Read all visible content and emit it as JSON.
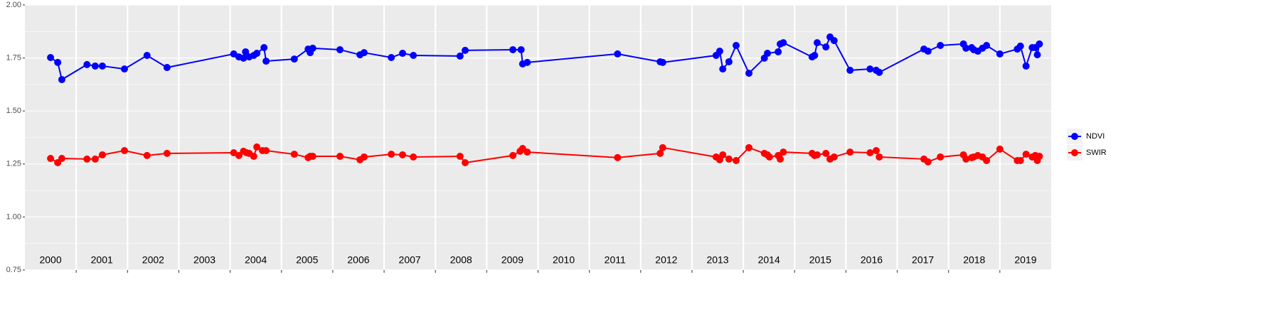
{
  "chart_data": {
    "type": "line",
    "series": [
      {
        "name": "NDVI",
        "color": "#0000ff",
        "x": [
          2000.5,
          2000.64,
          2000.72,
          2001.21,
          2001.37,
          2001.51,
          2001.94,
          2002.38,
          2002.77,
          2004.07,
          2004.17,
          2004.26,
          2004.3,
          2004.37,
          2004.46,
          2004.52,
          2004.66,
          2004.7,
          2005.25,
          2005.52,
          2005.56,
          2005.61,
          2006.14,
          2006.53,
          2006.61,
          2007.14,
          2007.36,
          2007.57,
          2008.48,
          2008.58,
          2009.51,
          2009.67,
          2009.7,
          2009.79,
          2011.55,
          2012.38,
          2012.43,
          2013.47,
          2013.54,
          2013.6,
          2013.72,
          2013.86,
          2014.11,
          2014.41,
          2014.47,
          2014.68,
          2014.72,
          2014.78,
          2015.34,
          2015.39,
          2015.44,
          2015.61,
          2015.69,
          2015.77,
          2016.08,
          2016.47,
          2016.59,
          2016.65,
          2017.52,
          2017.6,
          2017.84,
          2018.29,
          2018.34,
          2018.45,
          2018.49,
          2018.57,
          2018.66,
          2018.74,
          2019.0,
          2019.34,
          2019.4,
          2019.51,
          2019.63,
          2019.69,
          2019.73,
          2019.77
        ],
        "values": [
          1.752,
          1.729,
          1.648,
          1.719,
          1.712,
          1.712,
          1.698,
          1.762,
          1.705,
          1.769,
          1.755,
          1.749,
          1.779,
          1.755,
          1.762,
          1.772,
          1.799,
          1.735,
          1.745,
          1.792,
          1.775,
          1.796,
          1.789,
          1.765,
          1.775,
          1.752,
          1.772,
          1.762,
          1.759,
          1.786,
          1.789,
          1.789,
          1.722,
          1.729,
          1.769,
          1.732,
          1.729,
          1.762,
          1.782,
          1.698,
          1.732,
          1.809,
          1.678,
          1.749,
          1.772,
          1.779,
          1.816,
          1.822,
          1.755,
          1.762,
          1.822,
          1.802,
          1.849,
          1.832,
          1.692,
          1.698,
          1.692,
          1.682,
          1.792,
          1.782,
          1.809,
          1.816,
          1.796,
          1.799,
          1.789,
          1.782,
          1.796,
          1.809,
          1.769,
          1.792,
          1.806,
          1.712,
          1.799,
          1.799,
          1.765,
          1.816
        ]
      },
      {
        "name": "SWIR",
        "color": "#ff0000",
        "x": [
          2000.5,
          2000.64,
          2000.72,
          2001.21,
          2001.37,
          2001.51,
          2001.94,
          2002.38,
          2002.77,
          2004.07,
          2004.17,
          2004.26,
          2004.32,
          2004.37,
          2004.46,
          2004.52,
          2004.63,
          2004.7,
          2005.25,
          2005.52,
          2005.56,
          2005.61,
          2006.14,
          2006.53,
          2006.61,
          2007.14,
          2007.36,
          2007.57,
          2008.48,
          2008.58,
          2009.51,
          2009.65,
          2009.7,
          2009.79,
          2011.55,
          2012.38,
          2012.43,
          2013.47,
          2013.54,
          2013.6,
          2013.72,
          2013.86,
          2014.11,
          2014.41,
          2014.47,
          2014.51,
          2014.68,
          2014.72,
          2014.78,
          2015.34,
          2015.39,
          2015.44,
          2015.61,
          2015.69,
          2015.77,
          2016.08,
          2016.47,
          2016.59,
          2016.65,
          2017.52,
          2017.6,
          2017.84,
          2018.29,
          2018.34,
          2018.45,
          2018.49,
          2018.57,
          2018.66,
          2018.74,
          2019.0,
          2019.34,
          2019.4,
          2019.51,
          2019.63,
          2019.69,
          2019.73,
          2019.77
        ],
        "values": [
          1.276,
          1.256,
          1.276,
          1.273,
          1.273,
          1.293,
          1.313,
          1.29,
          1.3,
          1.303,
          1.29,
          1.31,
          1.303,
          1.3,
          1.286,
          1.33,
          1.313,
          1.313,
          1.296,
          1.28,
          1.286,
          1.286,
          1.286,
          1.27,
          1.283,
          1.296,
          1.293,
          1.283,
          1.286,
          1.256,
          1.29,
          1.31,
          1.323,
          1.306,
          1.28,
          1.3,
          1.327,
          1.283,
          1.27,
          1.293,
          1.273,
          1.266,
          1.327,
          1.3,
          1.293,
          1.283,
          1.29,
          1.273,
          1.306,
          1.3,
          1.29,
          1.293,
          1.3,
          1.273,
          1.283,
          1.306,
          1.303,
          1.313,
          1.283,
          1.273,
          1.26,
          1.283,
          1.293,
          1.273,
          1.28,
          1.283,
          1.29,
          1.283,
          1.266,
          1.32,
          1.266,
          1.266,
          1.296,
          1.283,
          1.29,
          1.266,
          1.286
        ]
      }
    ],
    "xlim": [
      2000,
      2020
    ],
    "xticks": [
      2001,
      2002,
      2003,
      2004,
      2005,
      2006,
      2007,
      2008,
      2009,
      2010,
      2011,
      2012,
      2013,
      2014,
      2015,
      2016,
      2017,
      2018,
      2019
    ],
    "year_labels": [
      {
        "value": 2000.5,
        "label": "2000"
      },
      {
        "value": 2001.5,
        "label": "2001"
      },
      {
        "value": 2002.5,
        "label": "2002"
      },
      {
        "value": 2003.5,
        "label": "2003"
      },
      {
        "value": 2004.5,
        "label": "2004"
      },
      {
        "value": 2005.5,
        "label": "2005"
      },
      {
        "value": 2006.5,
        "label": "2006"
      },
      {
        "value": 2007.5,
        "label": "2007"
      },
      {
        "value": 2008.5,
        "label": "2008"
      },
      {
        "value": 2009.5,
        "label": "2009"
      },
      {
        "value": 2010.5,
        "label": "2010"
      },
      {
        "value": 2011.5,
        "label": "2011"
      },
      {
        "value": 2012.5,
        "label": "2012"
      },
      {
        "value": 2013.5,
        "label": "2013"
      },
      {
        "value": 2014.5,
        "label": "2014"
      },
      {
        "value": 2015.5,
        "label": "2015"
      },
      {
        "value": 2016.5,
        "label": "2016"
      },
      {
        "value": 2017.5,
        "label": "2017"
      },
      {
        "value": 2018.5,
        "label": "2018"
      },
      {
        "value": 2019.5,
        "label": "2019"
      }
    ],
    "ylim": [
      0.75,
      2.0
    ],
    "yticks": [
      {
        "value": 0.75,
        "label": "0.75"
      },
      {
        "value": 1.0,
        "label": "1.00"
      },
      {
        "value": 1.25,
        "label": "1.25"
      },
      {
        "value": 1.5,
        "label": "1.50"
      },
      {
        "value": 1.75,
        "label": "1.75"
      },
      {
        "value": 2.0,
        "label": "2.00"
      }
    ],
    "grid": true,
    "legend": "right"
  }
}
